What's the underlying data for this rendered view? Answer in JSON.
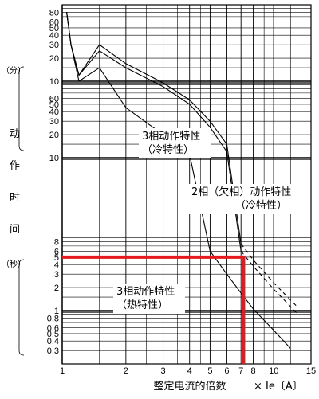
{
  "chart_data": {
    "type": "line",
    "xlabel": "整定电流的倍数",
    "x_unit": "× Ie〔A〕",
    "x_scale": "log",
    "xlim": [
      1,
      15
    ],
    "x_ticks": [
      1,
      2,
      3,
      4,
      5,
      6,
      7,
      8,
      10,
      15
    ],
    "ylabel": "动作时间",
    "y_scale": "log",
    "y_sections": [
      {
        "unit": "（分）",
        "ticks": [
          10,
          20,
          30,
          40,
          50,
          60,
          80
        ]
      },
      {
        "unit": "（秒）",
        "ticks": [
          10,
          20,
          30,
          40,
          50,
          60
        ]
      },
      {
        "unit": "",
        "ticks": [
          0.3,
          0.4,
          0.5,
          0.6,
          0.8,
          1,
          2,
          3,
          4,
          5,
          6,
          8
        ]
      }
    ],
    "grid": true,
    "series": [
      {
        "name": "3相动作特性（冷特性）",
        "points": [
          [
            1.05,
            80
          ],
          [
            1.1,
            30
          ],
          [
            1.2,
            12
          ],
          [
            1.5,
            250
          ],
          [
            2,
            150
          ],
          [
            3,
            85
          ],
          [
            4,
            50
          ],
          [
            5,
            25
          ],
          [
            6,
            12
          ],
          [
            7,
            6
          ],
          [
            8,
            3.8
          ],
          [
            10,
            1.9
          ],
          [
            13,
            0.9
          ]
        ]
      },
      {
        "name": "2相（欠相）动作特性（冷特性）",
        "points": [
          [
            1.05,
            80
          ],
          [
            1.1,
            30
          ],
          [
            1.2,
            12
          ],
          [
            1.5,
            300
          ],
          [
            2,
            170
          ],
          [
            3,
            95
          ],
          [
            4,
            57
          ],
          [
            5,
            30
          ],
          [
            6,
            15
          ],
          [
            7,
            7.5
          ],
          [
            8,
            4.6
          ],
          [
            10,
            2.3
          ],
          [
            13,
            1.1
          ]
        ]
      },
      {
        "name": "3相动作特性（热特性）",
        "points": [
          [
            1.05,
            80
          ],
          [
            1.1,
            30
          ],
          [
            1.2,
            10
          ],
          [
            1.5,
            150
          ],
          [
            2,
            45
          ],
          [
            3,
            20
          ],
          [
            4,
            11
          ],
          [
            5,
            6
          ],
          [
            6,
            3
          ],
          [
            7,
            1.7
          ],
          [
            8,
            1.05
          ],
          [
            10,
            0.55
          ],
          [
            12,
            0.32
          ]
        ]
      }
    ],
    "annotations": [
      {
        "text": "3相动作特性",
        "text2": "（冷特性）"
      },
      {
        "text": "2相（欠相）动作特性",
        "text2": "（冷特性）"
      },
      {
        "text": "3相动作特性",
        "text2": "（热特性）"
      }
    ],
    "highlight": {
      "x": 7.2,
      "y_seconds": 5,
      "color": "#e8191e"
    }
  }
}
